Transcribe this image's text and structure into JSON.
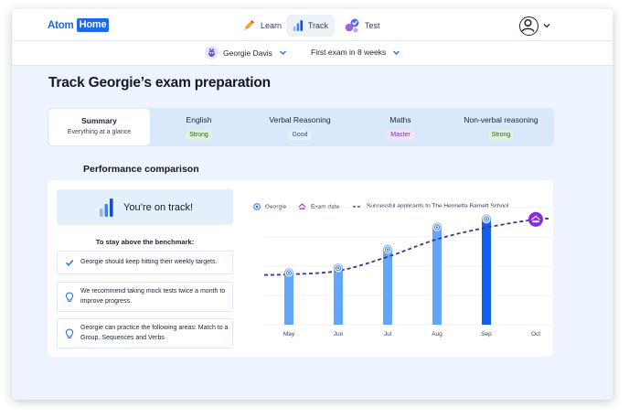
{
  "app": {
    "logo_atom": "Atom",
    "logo_home": "Home"
  },
  "nav": {
    "learn": "Learn",
    "track": "Track",
    "test": "Test"
  },
  "filters": {
    "student": "Georgie Davis",
    "exam": "First exam in 8 weeks"
  },
  "page": {
    "title": "Track Georgie’s exam preparation"
  },
  "subjects": [
    {
      "name": "Summary",
      "subtitle": "Everything at a glance"
    },
    {
      "name": "English",
      "badge": "Strong"
    },
    {
      "name": "Verbal Reasoning",
      "badge": "Good"
    },
    {
      "name": "Maths",
      "badge": "Master"
    },
    {
      "name": "Non-verbal reasoning",
      "badge": "Strong"
    }
  ],
  "performance": {
    "title": "Performance comparison",
    "status": "You’re on track!",
    "benchmark_title": "To stay above the benchmark:",
    "tips": [
      "Georgie should keep hitting their weekly targets.",
      "We recommend taking mock tests twice a month to improve progress.",
      "Georgie can practice the following areas: Match to a Group, Sequences and Verbs"
    ]
  },
  "colors": {
    "brand": "#1b6ae6",
    "bar": "#63a6f7",
    "bar_current": "#1061e8",
    "benchmark": "#3b3596",
    "exam_marker": "#8a2bdc"
  },
  "chart_data": {
    "type": "bar",
    "categories": [
      "May",
      "Jun",
      "Jul",
      "Aug",
      "Sep",
      "Oct"
    ],
    "series": [
      {
        "name": "Georgie",
        "values": [
          45,
          49,
          65,
          84,
          91,
          null
        ]
      },
      {
        "name": "Successful applicants to The Henrietta Barnett School",
        "values": [
          43,
          46,
          58,
          73,
          83,
          90
        ]
      }
    ],
    "legend": [
      "Georgie",
      "Exam date",
      "Successful applicants to The Henrietta Barnett School"
    ],
    "current_category": "Sep",
    "exam_category": "Oct",
    "ylim": [
      0,
      100
    ],
    "grid": true
  }
}
